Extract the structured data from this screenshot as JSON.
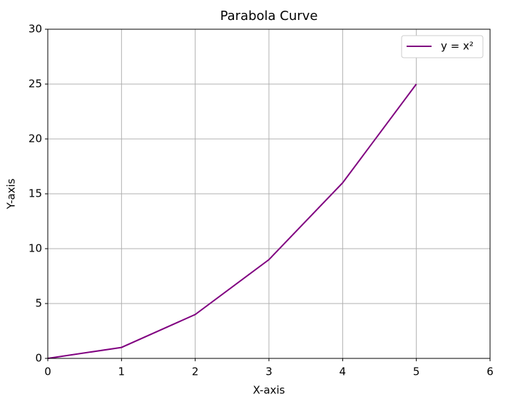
{
  "chart_data": {
    "type": "line",
    "title": "Parabola Curve",
    "x_label": "X-axis",
    "y_label": "Y-axis",
    "x": [
      0,
      1,
      2,
      3,
      4,
      5
    ],
    "series": [
      {
        "name": "y = x²",
        "color": "#800080",
        "values": [
          0,
          1,
          4,
          9,
          16,
          25
        ]
      }
    ],
    "xlim": [
      0,
      6
    ],
    "xticks": [
      0,
      1,
      2,
      3,
      4,
      5,
      6
    ],
    "ylim": [
      0,
      30
    ],
    "yticks": [
      0,
      5,
      10,
      15,
      20,
      25,
      30
    ],
    "grid": true,
    "legend": "upper right"
  }
}
